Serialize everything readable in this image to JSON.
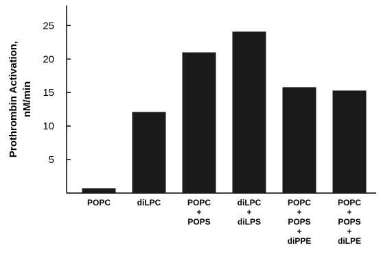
{
  "chart_data": {
    "type": "bar",
    "categories": [
      [
        "POPC"
      ],
      [
        "diLPC"
      ],
      [
        "POPC",
        "+",
        "POPS"
      ],
      [
        "diLPC",
        "+",
        "diLPS"
      ],
      [
        "POPC",
        "+",
        "POPS",
        "+",
        "diPPE"
      ],
      [
        "POPC",
        "+",
        "POPS",
        "+",
        "diLPE"
      ]
    ],
    "values": [
      0.7,
      12.1,
      21.0,
      24.1,
      15.8,
      15.3
    ],
    "ylabel_lines": [
      "Prothrombin Activation,",
      "nM/min"
    ],
    "yticks": [
      5,
      10,
      15,
      20,
      25
    ],
    "ylim": [
      0,
      28
    ],
    "bar_color": "#1a1a1a",
    "axis_color": "#000000",
    "grid": false
  }
}
